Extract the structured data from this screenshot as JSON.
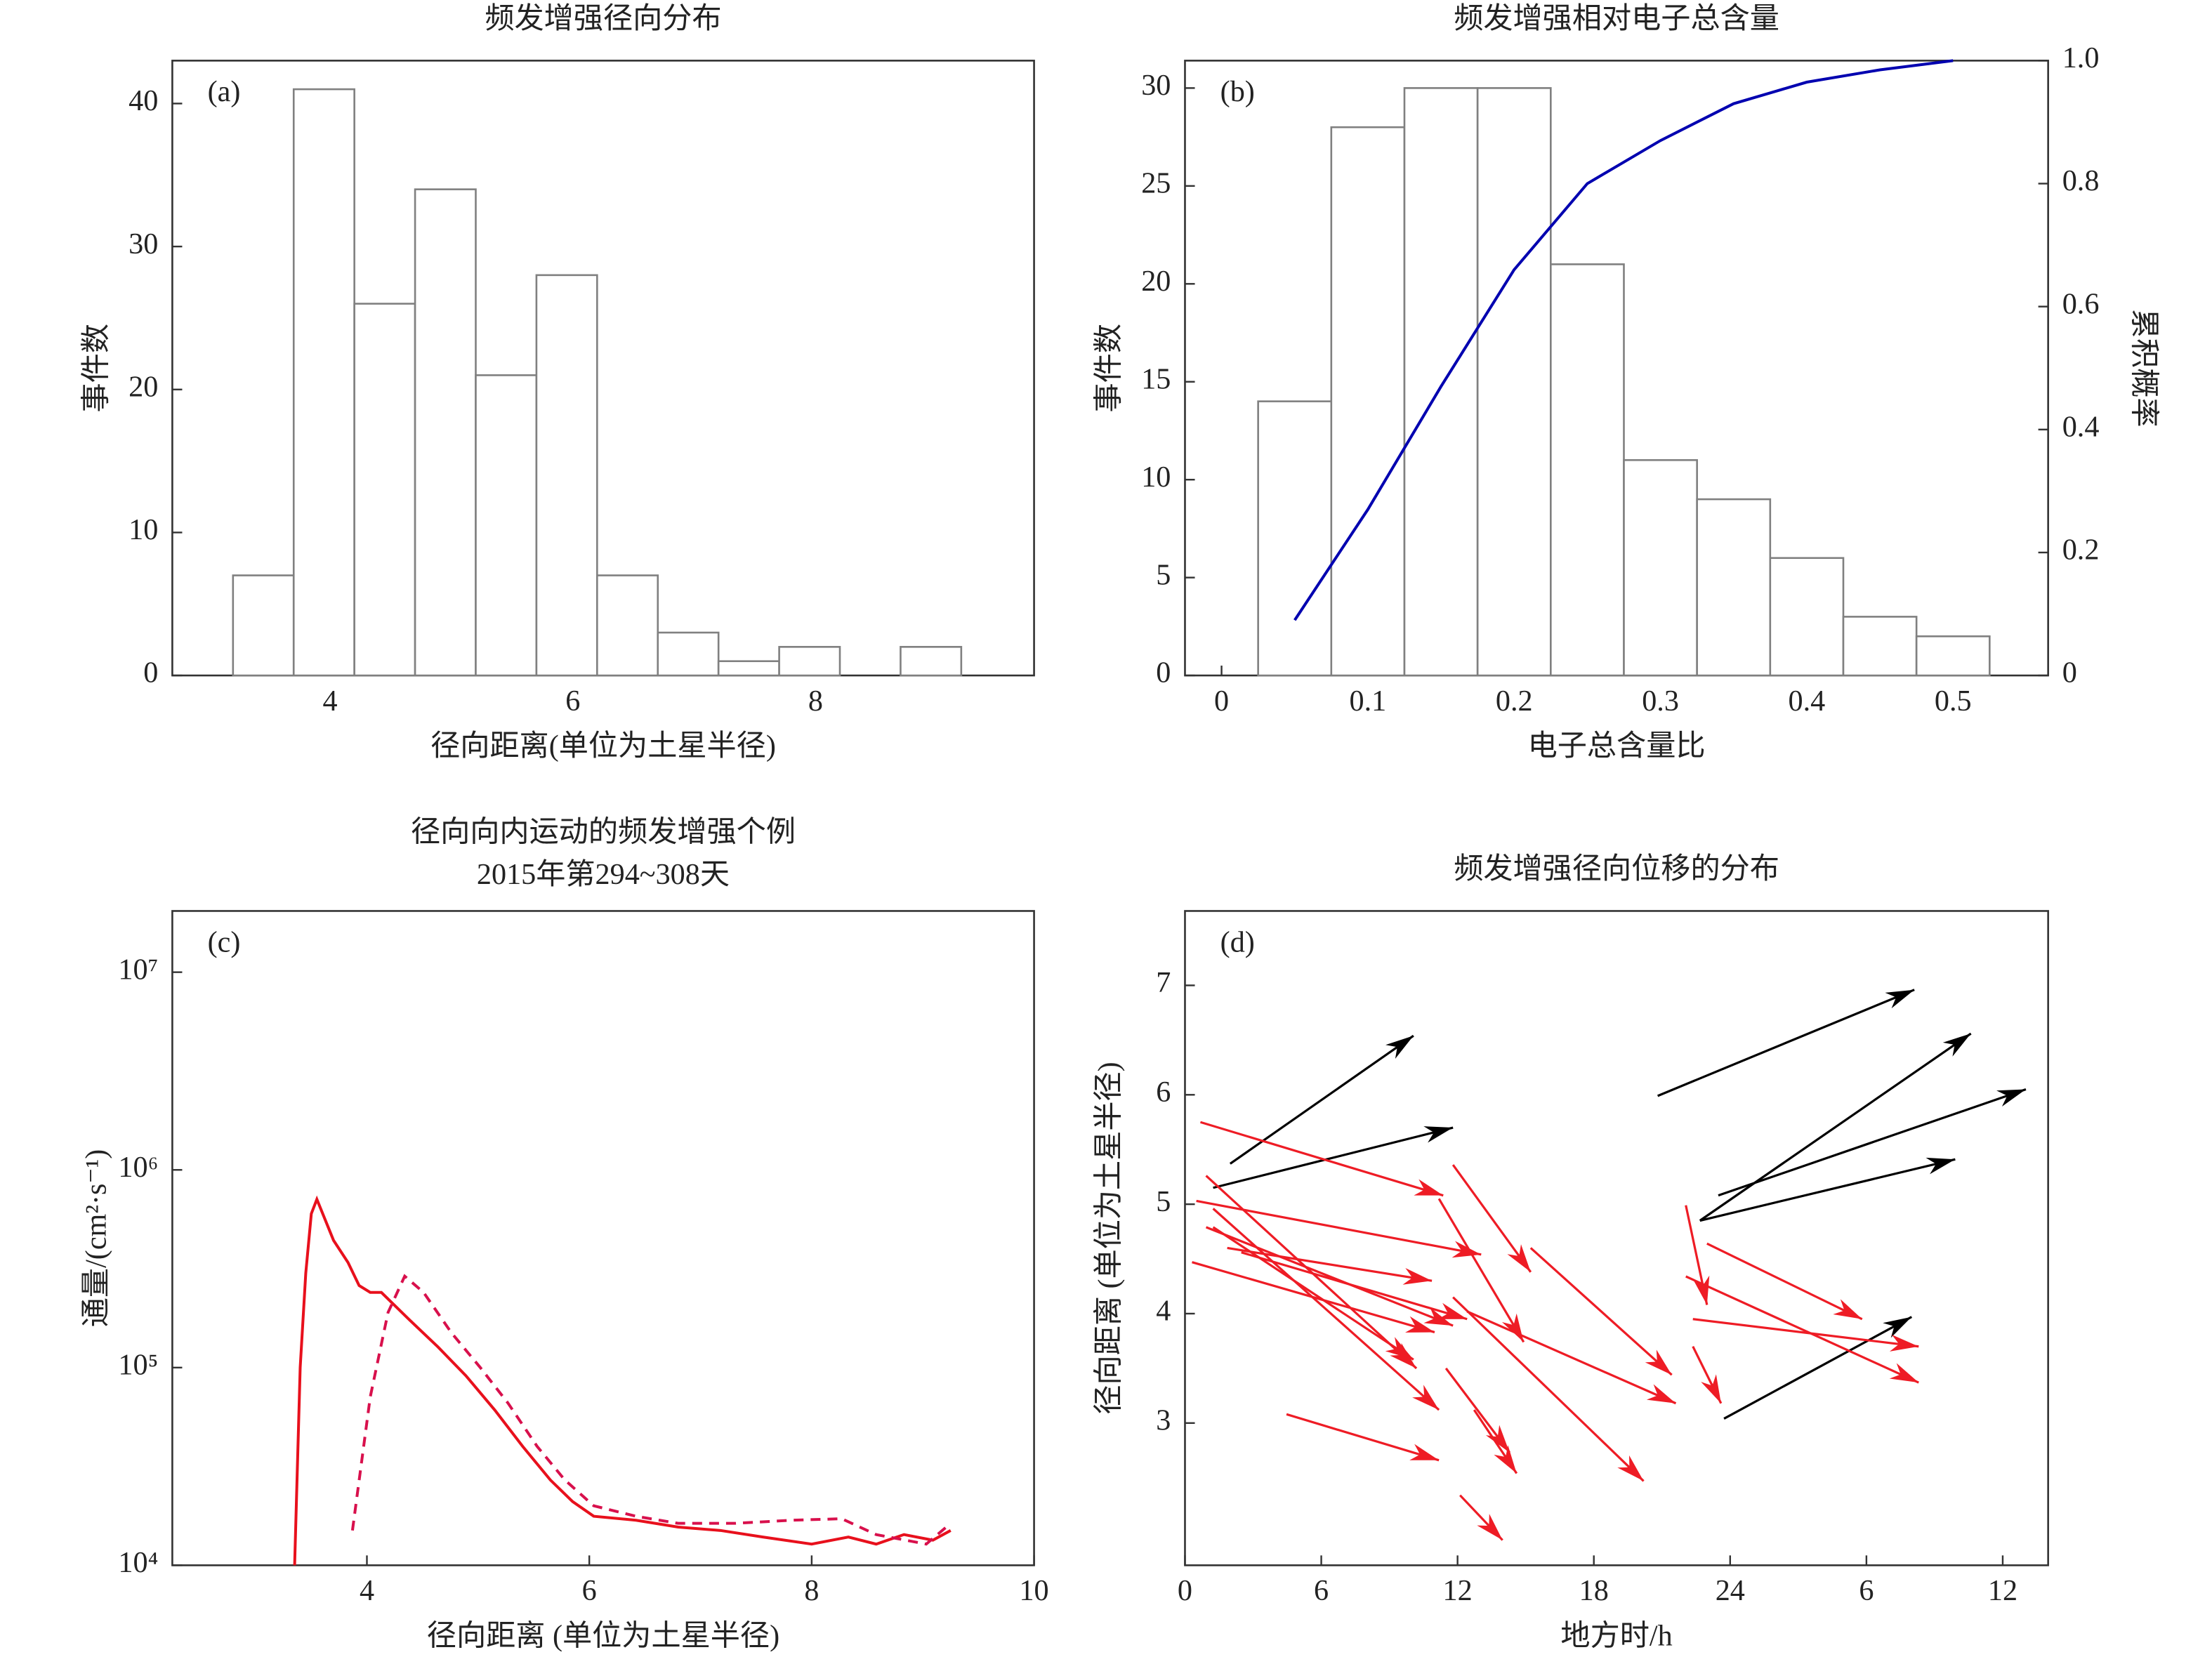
{
  "chart_data": [
    {
      "type": "histogram",
      "title": "频发增强径向分布",
      "panel_label": "(a)",
      "x_label": "径向距离(单位为土星半径)",
      "y_label": "事件数",
      "bins": [
        3.2,
        3.7,
        4.2,
        4.7,
        5.2,
        5.7,
        6.2,
        6.7,
        7.2,
        7.7,
        8.2,
        8.7,
        9.2
      ],
      "values": [
        7,
        41,
        26,
        34,
        21,
        28,
        7,
        3,
        1,
        2,
        0,
        2
      ],
      "color": "#808080",
      "xlim": [
        2.7,
        9.8
      ],
      "xticks": [
        4,
        6,
        8
      ],
      "ylim": [
        0,
        43
      ],
      "yticks": [
        0,
        10,
        20,
        30,
        40
      ]
    },
    {
      "type": "histogram",
      "title": "频发增强相对电子总含量",
      "panel_label": "(b)",
      "x_label": "电子总含量比",
      "y_label": "事件数",
      "y2_label": "累积概率",
      "bins": [
        -0.025,
        0.025,
        0.075,
        0.125,
        0.175,
        0.225,
        0.275,
        0.325,
        0.375,
        0.425,
        0.475,
        0.525
      ],
      "values": [
        0,
        14,
        28,
        30,
        30,
        21,
        11,
        9,
        6,
        3,
        2
      ],
      "color": "#808080",
      "series": [
        {
          "color": "#0000b0",
          "axis": "y2",
          "linestyle": "solid",
          "x": [
            0.05,
            0.1,
            0.15,
            0.2,
            0.25,
            0.3,
            0.35,
            0.4,
            0.45,
            0.5
          ],
          "values": [
            0.09,
            0.27,
            0.47,
            0.66,
            0.8,
            0.87,
            0.93,
            0.965,
            0.985,
            1.0
          ]
        }
      ],
      "xlim": [
        -0.025,
        0.565
      ],
      "xticks": [
        0,
        0.1,
        0.2,
        0.3,
        0.4,
        0.5
      ],
      "ylim": [
        0,
        31.4
      ],
      "yticks": [
        0,
        5,
        10,
        15,
        20,
        25,
        30
      ],
      "y2lim": [
        0,
        1
      ],
      "y2ticks": [
        0,
        0.2,
        0.4,
        0.6,
        0.8,
        {
          "value": 1,
          "label": "1.0"
        }
      ]
    },
    {
      "type": "line",
      "title": "径向向内运动的频发增强个例",
      "subtitle": "2015年第294~308天",
      "panel_label": "(c)",
      "x_label": "径向距离 (单位为土星半径)",
      "y_label": "通量/(cm²·s⁻¹)",
      "log_y": true,
      "series": [
        {
          "color": "#e8101c",
          "linestyle": "solid",
          "x": [
            3.35,
            3.4,
            3.45,
            3.5,
            3.55,
            3.7,
            3.83,
            3.93,
            4.03,
            4.13,
            4.38,
            4.64,
            4.89,
            5.15,
            5.4,
            5.65,
            5.85,
            6.04,
            6.42,
            6.8,
            7.18,
            7.56,
            8.0,
            8.33,
            8.58,
            8.83,
            9.09,
            9.25
          ],
          "values": [
            10000,
            100000,
            300000,
            600000,
            710000,
            440000,
            340000,
            260000,
            240000,
            240000,
            175000,
            127000,
            91000,
            61000,
            40000,
            27000,
            21000,
            17700,
            16900,
            15600,
            15000,
            13900,
            12800,
            13900,
            12800,
            14300,
            13400,
            15000
          ]
        },
        {
          "color": "#d8104c",
          "linestyle": "dashed",
          "x": [
            3.87,
            4.03,
            4.19,
            4.34,
            4.51,
            4.76,
            5.02,
            5.27,
            5.53,
            5.78,
            6.04,
            6.42,
            6.8,
            7.31,
            7.82,
            8.27,
            8.58,
            9.03,
            9.25
          ],
          "values": [
            15000,
            71000,
            190000,
            290000,
            240000,
            150000,
            100000,
            66000,
            40000,
            27000,
            20000,
            17700,
            16300,
            16300,
            16900,
            17200,
            14300,
            12800,
            16300
          ]
        }
      ],
      "xlim": [
        2.25,
        10
      ],
      "xticks": [
        4,
        6,
        8,
        10
      ],
      "ylim": [
        10000,
        20400000
      ],
      "yticks": [
        {
          "value": 10000,
          "label": "10⁴"
        },
        {
          "value": 100000,
          "label": "10⁵"
        },
        {
          "value": 1000000,
          "label": "10⁶"
        },
        {
          "value": 10000000,
          "label": "10⁷"
        }
      ]
    },
    {
      "type": "vector",
      "title": "频发增强径向位移的分布",
      "panel_label": "(d)",
      "x_label": "地方时/h",
      "y_label": "径向距离 (单位为土星半径)",
      "series": [
        {
          "color": "#000000",
          "x": [
            1.99,
            1.24,
            20.81,
            22.67,
            23.48,
            22.67,
            23.73
          ],
          "y": [
            5.37,
            5.15,
            5.99,
            4.85,
            5.08,
            4.85,
            3.04
          ],
          "x_end": [
            10.06,
            11.8,
            32.11,
            34.6,
            37.02,
            33.91,
            31.99
          ],
          "y_end": [
            6.54,
            5.7,
            6.96,
            6.56,
            6.05,
            5.41,
            3.97
          ]
        },
        {
          "color": "#ee1c25",
          "x": [
            0.68,
            0.5,
            0.93,
            1.24,
            0.93,
            0.31,
            1.86,
            2.48,
            11.8,
            11.18,
            15.22,
            12.42,
            11.8,
            11.49,
            12.73,
            4.47,
            12.11,
            22.05,
            22.98,
            22.36,
            22.05,
            22.36,
            1.24
          ],
          "y": [
            5.75,
            5.03,
            5.26,
            4.96,
            4.79,
            4.47,
            4.6,
            4.56,
            5.36,
            5.05,
            4.6,
            4.02,
            4.15,
            3.5,
            3.12,
            3.08,
            2.34,
            4.99,
            4.64,
            3.95,
            4.34,
            3.7,
            4.79
          ],
          "x_end": [
            11.37,
            13.04,
            10.19,
            11.18,
            11.8,
            10.99,
            10.87,
            12.42,
            15.22,
            14.91,
            21.43,
            21.61,
            20.19,
            14.29,
            14.6,
            11.18,
            13.98,
            22.98,
            29.81,
            32.3,
            32.3,
            23.6,
            10.06
          ],
          "y_end": [
            5.08,
            4.54,
            3.5,
            3.12,
            3.89,
            3.83,
            4.3,
            3.95,
            4.38,
            3.74,
            3.44,
            3.18,
            2.47,
            2.73,
            2.54,
            2.66,
            1.93,
            4.08,
            3.95,
            3.7,
            3.37,
            3.18,
            3.58
          ]
        }
      ],
      "xlim": [
        0,
        38
      ],
      "xticks": [
        0,
        6,
        12,
        18,
        24,
        {
          "value": 30,
          "label": "6"
        },
        {
          "value": 36,
          "label": "12"
        }
      ],
      "ylim": [
        1.7,
        7.68
      ],
      "yticks": [
        3,
        4,
        5,
        6,
        7
      ]
    }
  ]
}
